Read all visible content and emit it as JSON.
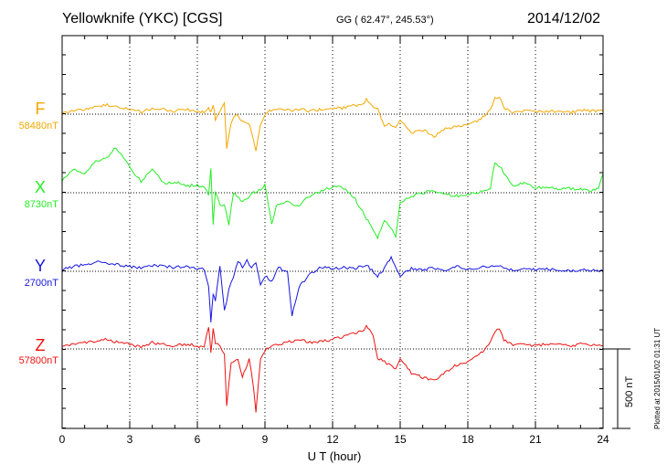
{
  "header": {
    "title": "Yellowknife (YKC)  [CGS]",
    "coords": "GG ( 62.47°, 245.53°)",
    "date": "2014/12/02",
    "plotted_note": "Plotted at 2015/01/02 01:31  UT"
  },
  "chart_data": {
    "type": "line",
    "xlabel": "U T (hour)",
    "xlim": [
      0,
      24
    ],
    "x_ticks": [
      "0",
      "3",
      "6",
      "9",
      "12",
      "15",
      "18",
      "21",
      "24"
    ],
    "scale_bar_label": "500 nT",
    "series": [
      {
        "name": "F",
        "baseline_label": "58480nT",
        "color": "#f5a800",
        "x": [
          0,
          0.5,
          1,
          1.5,
          2,
          2.5,
          3,
          3.5,
          4,
          4.5,
          5,
          5.5,
          6,
          6.3,
          6.5,
          6.6,
          6.7,
          6.8,
          7.0,
          7.2,
          7.3,
          7.5,
          7.7,
          8.0,
          8.3,
          8.5,
          8.6,
          8.8,
          9.0,
          9.2,
          9.5,
          10.0,
          10.5,
          11.0,
          11.5,
          12.0,
          12.5,
          13.0,
          13.3,
          13.5,
          13.8,
          14.0,
          14.3,
          14.5,
          14.8,
          15.0,
          15.5,
          16.0,
          16.5,
          17.0,
          17.5,
          18.0,
          18.5,
          19.0,
          19.2,
          19.4,
          19.6,
          20.0,
          20.5,
          21.0,
          21.5,
          22.0,
          22.5,
          23.0,
          23.5,
          24.0
        ],
        "y": [
          5,
          25,
          30,
          45,
          60,
          40,
          30,
          15,
          35,
          30,
          20,
          30,
          20,
          10,
          40,
          10,
          60,
          -30,
          20,
          70,
          -220,
          -60,
          0,
          -50,
          -60,
          -160,
          -230,
          -60,
          -10,
          20,
          30,
          25,
          30,
          20,
          30,
          35,
          40,
          55,
          60,
          90,
          50,
          40,
          -80,
          -60,
          -90,
          -40,
          -120,
          -100,
          -140,
          -90,
          -80,
          -60,
          -40,
          30,
          100,
          110,
          40,
          10,
          20,
          15,
          20,
          15,
          10,
          25,
          20,
          20
        ]
      },
      {
        "name": "X",
        "baseline_label": "8730nT",
        "color": "#22ee22",
        "x": [
          0,
          0.5,
          1,
          1.5,
          2,
          2.3,
          2.5,
          3.0,
          3.5,
          4.0,
          4.5,
          5.0,
          5.5,
          6.0,
          6.3,
          6.5,
          6.6,
          6.7,
          6.8,
          7.0,
          7.2,
          7.4,
          7.6,
          8.0,
          8.3,
          8.5,
          8.8,
          9.0,
          9.3,
          9.5,
          10.0,
          10.5,
          11.0,
          11.5,
          12.0,
          12.5,
          13.0,
          13.5,
          13.8,
          14.0,
          14.3,
          14.5,
          14.8,
          15.0,
          15.5,
          16.0,
          16.5,
          17.0,
          17.5,
          18.0,
          18.5,
          19.0,
          19.2,
          19.5,
          20.0,
          20.5,
          21.0,
          21.5,
          22.0,
          22.5,
          23.0,
          23.5,
          23.8,
          24.0
        ],
        "y": [
          80,
          150,
          120,
          200,
          220,
          280,
          260,
          160,
          70,
          150,
          60,
          70,
          40,
          50,
          30,
          -10,
          150,
          -200,
          10,
          -80,
          -70,
          -200,
          0,
          -60,
          -20,
          0,
          20,
          50,
          -200,
          -80,
          -60,
          -80,
          -20,
          10,
          40,
          30,
          -40,
          -160,
          -240,
          -280,
          -170,
          -200,
          -280,
          -60,
          -20,
          0,
          10,
          -10,
          -20,
          -10,
          0,
          30,
          190,
          150,
          40,
          60,
          30,
          40,
          20,
          30,
          20,
          10,
          30,
          120
        ]
      },
      {
        "name": "Y",
        "baseline_label": "2700nT",
        "color": "#1515e0",
        "x": [
          0,
          0.5,
          1,
          1.5,
          2,
          2.5,
          3,
          3.5,
          4,
          4.5,
          5,
          5.5,
          6,
          6.3,
          6.5,
          6.6,
          6.7,
          6.8,
          7.0,
          7.2,
          7.4,
          7.6,
          7.8,
          8.0,
          8.2,
          8.4,
          8.6,
          8.8,
          9.0,
          9.3,
          9.6,
          10.0,
          10.2,
          10.5,
          11.0,
          11.5,
          12.0,
          12.5,
          13.0,
          13.5,
          14.0,
          14.3,
          14.6,
          15.0,
          15.5,
          16.0,
          16.5,
          17.0,
          17.5,
          18.0,
          18.5,
          19.0,
          19.3,
          19.6,
          20.0,
          20.5,
          21.0,
          21.5,
          22.0,
          22.5,
          23.0,
          23.5,
          24.0
        ],
        "y": [
          10,
          30,
          40,
          60,
          50,
          40,
          30,
          20,
          35,
          30,
          25,
          30,
          20,
          15,
          -100,
          -320,
          -150,
          -180,
          40,
          -250,
          -120,
          -30,
          60,
          30,
          70,
          20,
          60,
          -80,
          -30,
          -60,
          20,
          0,
          -280,
          -100,
          -20,
          30,
          15,
          25,
          20,
          40,
          -30,
          20,
          90,
          -30,
          20,
          10,
          20,
          10,
          30,
          10,
          25,
          30,
          35,
          20,
          10,
          15,
          10,
          15,
          10,
          5,
          10,
          5,
          5
        ]
      },
      {
        "name": "Z",
        "baseline_label": "57800nT",
        "color": "#ee1111",
        "x": [
          0,
          0.5,
          1,
          1.5,
          2,
          2.5,
          3,
          3.5,
          4,
          4.5,
          5,
          5.5,
          6,
          6.3,
          6.5,
          6.6,
          6.7,
          6.8,
          7.0,
          7.2,
          7.3,
          7.5,
          7.8,
          8.0,
          8.3,
          8.5,
          8.6,
          8.8,
          9.0,
          9.3,
          9.5,
          10.0,
          10.5,
          11.0,
          11.5,
          12.0,
          12.5,
          13.0,
          13.3,
          13.5,
          13.8,
          14.0,
          14.3,
          14.5,
          14.8,
          15.0,
          15.5,
          16.0,
          16.5,
          17.0,
          17.5,
          18.0,
          18.5,
          19.0,
          19.2,
          19.4,
          19.6,
          20.0,
          20.5,
          21.0,
          21.5,
          22.0,
          22.5,
          23.0,
          23.5,
          24.0
        ],
        "y": [
          20,
          30,
          40,
          50,
          60,
          40,
          30,
          10,
          40,
          30,
          20,
          30,
          20,
          10,
          140,
          -20,
          120,
          40,
          20,
          -30,
          -360,
          -90,
          -70,
          -180,
          -60,
          -250,
          -400,
          -60,
          -10,
          20,
          30,
          40,
          60,
          40,
          50,
          60,
          80,
          100,
          110,
          140,
          90,
          -60,
          -80,
          -100,
          -120,
          -60,
          -150,
          -180,
          -200,
          -150,
          -100,
          -80,
          -40,
          40,
          110,
          130,
          60,
          20,
          30,
          20,
          30,
          25,
          20,
          30,
          25,
          20
        ]
      }
    ]
  }
}
